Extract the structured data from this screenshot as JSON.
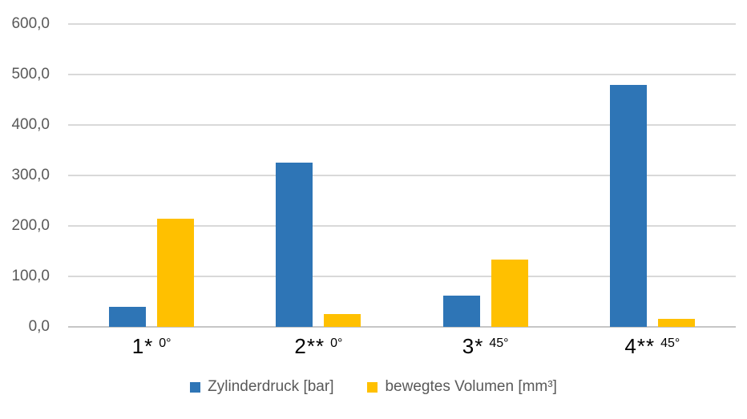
{
  "chart_data": {
    "type": "bar",
    "title": "",
    "categories": [
      "1* 0°",
      "2** 0°",
      "3* 45°",
      "4** 45°"
    ],
    "category_labels": [
      {
        "main": "1*",
        "angle": "0°"
      },
      {
        "main": "2**",
        "angle": "0°"
      },
      {
        "main": "3*",
        "angle": "45°"
      },
      {
        "main": "4**",
        "angle": "45°"
      }
    ],
    "series": [
      {
        "name": "Zylinderdruck [bar]",
        "color": "#2E75B6",
        "values": [
          40,
          325,
          62,
          480
        ]
      },
      {
        "name": "bewegtes Volumen [mm³]",
        "color": "#FFC000",
        "values": [
          214,
          26,
          133,
          16
        ]
      }
    ],
    "ylim": [
      0,
      600
    ],
    "ytick_step": 100,
    "ytick_labels": [
      "0,0",
      "100,0",
      "200,0",
      "300,0",
      "400,0",
      "500,0",
      "600,0"
    ],
    "grid": true,
    "legend_position": "bottom"
  },
  "colors": {
    "background": "#ffffff",
    "gridline": "#d9d9d9",
    "axis_line": "#c6c6c6",
    "tick_text": "#595959",
    "category_text": "#000000",
    "series_blue": "#2E75B6",
    "series_yellow": "#FFC000"
  }
}
